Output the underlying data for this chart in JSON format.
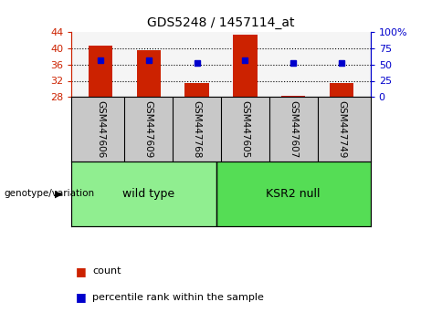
{
  "title": "GDS5248 / 1457114_at",
  "samples": [
    "GSM447606",
    "GSM447609",
    "GSM447768",
    "GSM447605",
    "GSM447607",
    "GSM447749"
  ],
  "groups": [
    "wild type",
    "wild type",
    "wild type",
    "KSR2 null",
    "KSR2 null",
    "KSR2 null"
  ],
  "group_labels": [
    "wild type",
    "KSR2 null"
  ],
  "bar_values": [
    40.6,
    39.5,
    31.5,
    43.5,
    28.2,
    31.5
  ],
  "percentile_values": [
    57,
    57,
    53,
    57,
    52,
    53
  ],
  "bar_color": "#CC2200",
  "percentile_color": "#0000CC",
  "ymin": 28,
  "ymax": 44,
  "yticks": [
    28,
    32,
    36,
    40,
    44
  ],
  "y2min": 0,
  "y2max": 100,
  "y2ticks": [
    0,
    25,
    50,
    75,
    100
  ],
  "y2ticklabels": [
    "0",
    "25",
    "50",
    "75",
    "100%"
  ],
  "legend_count_label": "count",
  "legend_percentile_label": "percentile rank within the sample",
  "genotype_label": "genotype/variation",
  "left_color": "#CC2200",
  "right_color": "#0000CC",
  "bar_width": 0.5,
  "background_plot": "#F5F5F5",
  "background_label": "#C8C8C8",
  "green_light": "#90EE90",
  "green_dark": "#55DD55"
}
